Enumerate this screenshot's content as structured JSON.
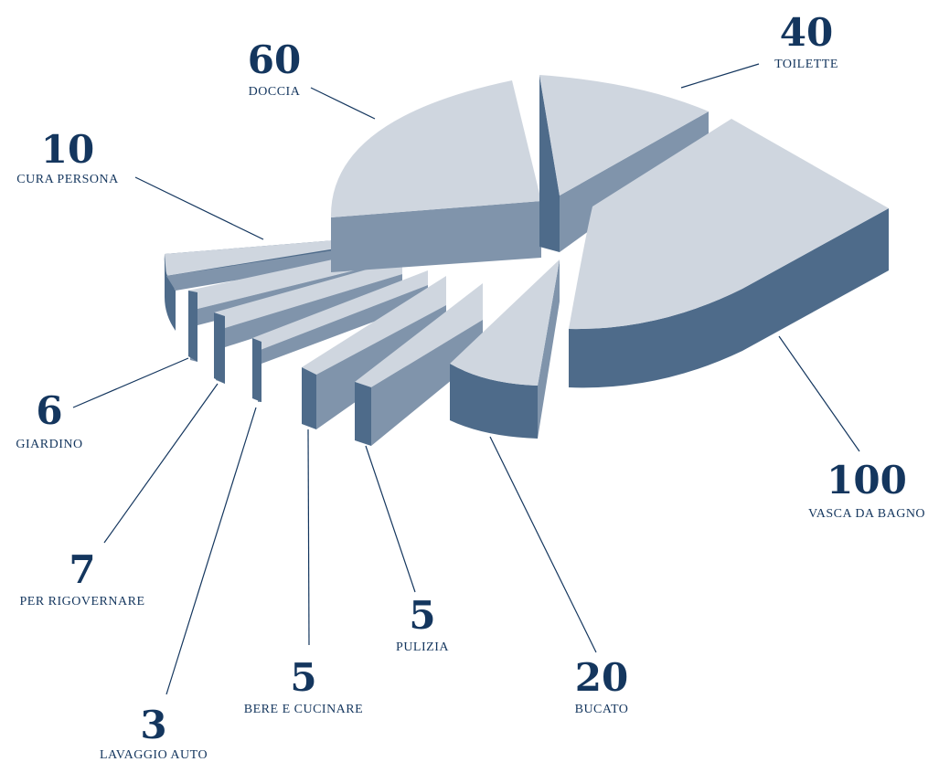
{
  "chart_data": {
    "type": "pie",
    "style": "exploded-3d",
    "title": "",
    "colors": {
      "top": "#cfd6df",
      "side_light": "#8094ab",
      "side_dark": "#4e6b8a",
      "text": "#14365e"
    },
    "slices": [
      {
        "label": "VASCA DA BAGNO",
        "value": 100
      },
      {
        "label": "DOCCIA",
        "value": 60
      },
      {
        "label": "TOILETTE",
        "value": 40
      },
      {
        "label": "BUCATO",
        "value": 20
      },
      {
        "label": "CURA PERSONA",
        "value": 10
      },
      {
        "label": "PER RIGOVERNARE",
        "value": 7
      },
      {
        "label": "GIARDINO",
        "value": 6
      },
      {
        "label": "BERE E CUCINARE",
        "value": 5
      },
      {
        "label": "PULIZIA",
        "value": 5
      },
      {
        "label": "LAVAGGIO AUTO",
        "value": 3
      }
    ]
  }
}
